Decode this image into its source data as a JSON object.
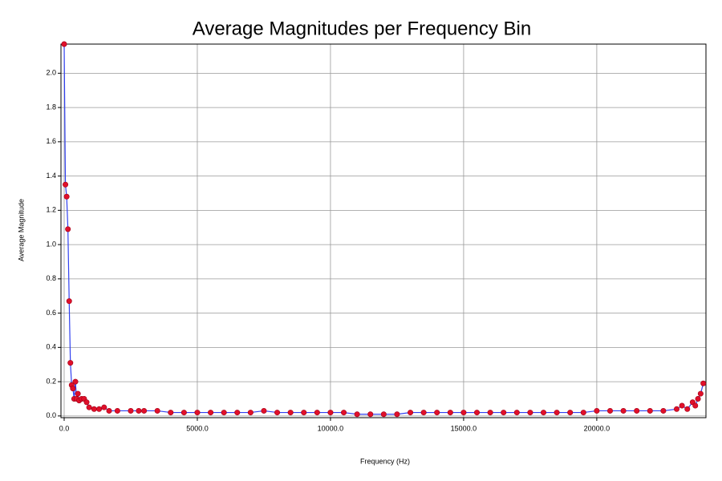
{
  "chart_data": {
    "type": "line",
    "title": "Average Magnitudes per Frequency Bin",
    "x_label": "Frequency (Hz)",
    "y_label": "Average Magnitude",
    "color": "#3040f0",
    "marker_color": "#e0102a",
    "grid": true,
    "x": [
      0,
      47,
      94,
      141,
      188,
      234,
      281,
      328,
      375,
      422,
      469,
      516,
      563,
      656,
      750,
      844,
      938,
      1125,
      1313,
      1500,
      1688,
      2000,
      2500,
      2800,
      3000,
      3500,
      4000,
      4500,
      5000,
      5500,
      6000,
      6500,
      7000,
      7500,
      8000,
      8500,
      9000,
      9500,
      10000,
      10500,
      11000,
      11500,
      12000,
      12500,
      13000,
      13500,
      14000,
      14500,
      15000,
      15500,
      16000,
      16500,
      17000,
      17500,
      18000,
      18500,
      19000,
      19500,
      20000,
      20500,
      21000,
      21500,
      22000,
      22500,
      23000,
      23200,
      23400,
      23600,
      23700,
      23800,
      23900,
      24000
    ],
    "values": [
      2.17,
      1.35,
      1.28,
      1.09,
      0.67,
      0.31,
      0.18,
      0.16,
      0.1,
      0.2,
      0.1,
      0.13,
      0.09,
      0.1,
      0.1,
      0.08,
      0.05,
      0.04,
      0.04,
      0.05,
      0.03,
      0.03,
      0.03,
      0.03,
      0.03,
      0.03,
      0.02,
      0.02,
      0.02,
      0.02,
      0.02,
      0.02,
      0.02,
      0.03,
      0.02,
      0.02,
      0.02,
      0.02,
      0.02,
      0.02,
      0.01,
      0.01,
      0.01,
      0.01,
      0.02,
      0.02,
      0.02,
      0.02,
      0.02,
      0.02,
      0.02,
      0.02,
      0.02,
      0.02,
      0.02,
      0.02,
      0.02,
      0.02,
      0.03,
      0.03,
      0.03,
      0.03,
      0.03,
      0.03,
      0.04,
      0.06,
      0.04,
      0.08,
      0.06,
      0.1,
      0.13,
      0.19
    ],
    "xlim": [
      -120,
      24100
    ],
    "ylim": [
      -0.01,
      2.17
    ],
    "xticks": [
      {
        "value": 0,
        "label": "0.0"
      },
      {
        "value": 5000,
        "label": "5000.0"
      },
      {
        "value": 10000,
        "label": "10000.0"
      },
      {
        "value": 15000,
        "label": "15000.0"
      },
      {
        "value": 20000,
        "label": "20000.0"
      }
    ],
    "yticks": [
      {
        "value": 0,
        "label": "0.0"
      },
      0.2,
      0.4,
      0.6,
      0.8,
      {
        "value": 1,
        "label": "1.0"
      },
      1.2,
      1.4,
      1.6,
      1.8,
      {
        "value": 2,
        "label": "2.0"
      }
    ]
  }
}
